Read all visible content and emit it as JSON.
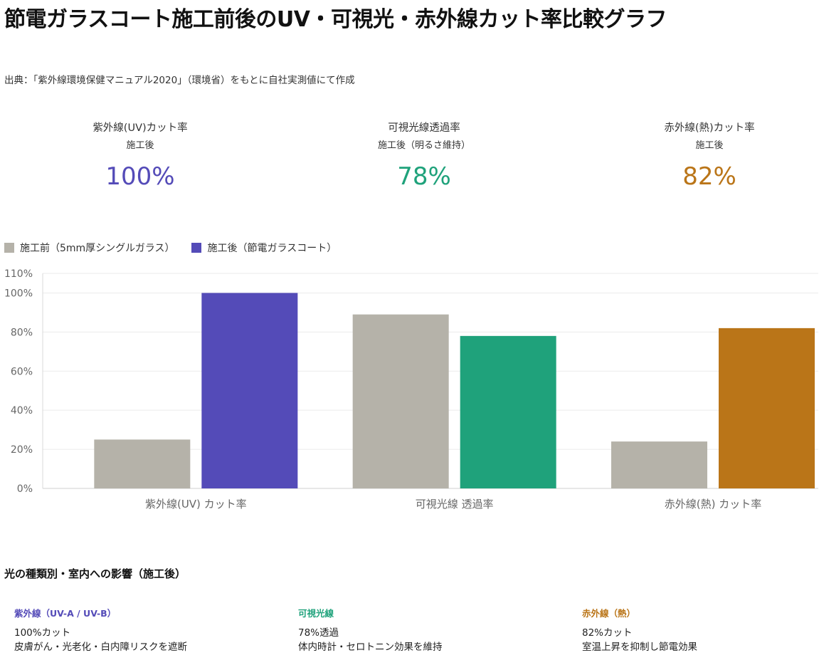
{
  "page": {
    "title": "節電ガラスコート施工前後のUV・可視光・赤外線カット率比較グラフ",
    "source": "出典：「紫外線環境保健マニュアル2020」（環境省）をもとに自社実測値にて作成"
  },
  "stats": [
    {
      "title": "紫外線(UV)カット率",
      "subtitle": "施工後",
      "value": "100%",
      "color": "#544bb8"
    },
    {
      "title": "可視光線透過率",
      "subtitle": "施工後（明るさ維持）",
      "value": "78%",
      "color": "#1fa27b"
    },
    {
      "title": "赤外線(熱)カット率",
      "subtitle": "施工後",
      "value": "82%",
      "color": "#ba7518"
    }
  ],
  "chart_data": {
    "type": "bar",
    "categories": [
      "紫外線(UV) カット率",
      "可視光線 透過率",
      "赤外線(熱) カット率"
    ],
    "series": [
      {
        "name": "施工前（5mm厚シングルガラス）",
        "values": [
          25,
          89,
          24
        ],
        "color": "#b5b2a9"
      },
      {
        "name": "施工後（節電ガラスコート）",
        "values": [
          100,
          78,
          82
        ],
        "colors": [
          "#544bb8",
          "#1fa27b",
          "#ba7518"
        ]
      }
    ],
    "yticks": [
      "0%",
      "20%",
      "40%",
      "60%",
      "80%",
      "100%",
      "110%"
    ],
    "ytick_values": [
      0,
      20,
      40,
      60,
      80,
      100,
      110
    ],
    "ylim": [
      0,
      110
    ],
    "legend_position": "top-left",
    "grid": true
  },
  "section": {
    "heading": "光の種類別・室内への影響（施工後）",
    "cards": [
      {
        "title": "紫外線（UV-A / UV-B）",
        "line1": "100%カット",
        "line2": "皮膚がん・光老化・白内障リスクを遮断",
        "color": "#544bb8"
      },
      {
        "title": "可視光線",
        "line1": "78%透過",
        "line2": "体内時計・セロトニン効果を維持",
        "color": "#1fa27b"
      },
      {
        "title": "赤外線（熱）",
        "line1": "82%カット",
        "line2": "室温上昇を抑制し節電効果",
        "color": "#ba7518"
      }
    ]
  }
}
